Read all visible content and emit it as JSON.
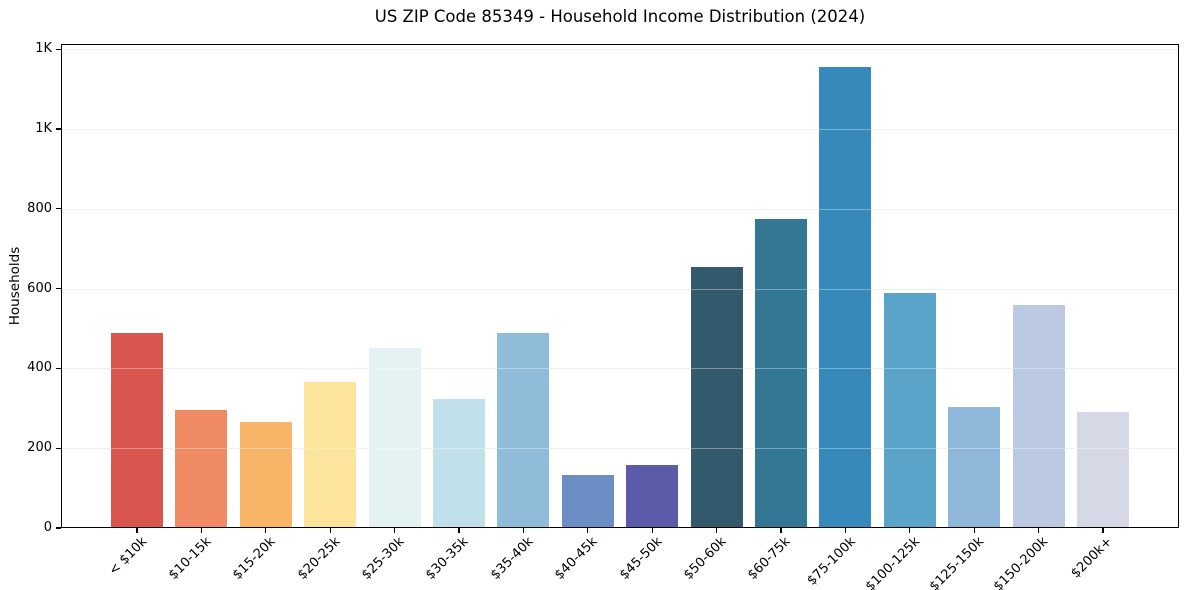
{
  "figure": {
    "title": "US ZIP Code 85349 - Household Income Distribution (2024)",
    "background_color": "#ffffff",
    "spine_color": "#000000",
    "grid_color": "#e7e7e7",
    "text_color": "#000000"
  },
  "chart_data": {
    "type": "bar",
    "title": "US ZIP Code 85349 - Household Income Distribution (2024)",
    "xlabel": "",
    "ylabel": "Households",
    "categories": [
      "< $10k",
      "$10-15k",
      "$15-20k",
      "$20-25k",
      "$25-30k",
      "$30-35k",
      "$35-40k",
      "$40-45k",
      "$45-50k",
      "$50-60k",
      "$60-75k",
      "$75-100k",
      "$100-125k",
      "$125-150k",
      "$150-200k",
      "$200k+"
    ],
    "values": [
      490,
      296,
      265,
      366,
      450,
      323,
      488,
      134,
      157,
      653,
      775,
      1155,
      589,
      303,
      559,
      290
    ],
    "bar_colors": [
      "#d8564d",
      "#f08a64",
      "#f8b567",
      "#fce49c",
      "#e4f2f4",
      "#c2dfec",
      "#8fbcd9",
      "#6b8fc5",
      "#5c5baa",
      "#33596c",
      "#347795",
      "#3789bc",
      "#5ba4c9",
      "#8fb7d9",
      "#bcc9e2",
      "#d6d8e5"
    ],
    "ylim": [
      0,
      1213
    ],
    "yticks": [
      0,
      200,
      400,
      600,
      800,
      1000,
      1200
    ],
    "ytick_labels": [
      "0",
      "200",
      "400",
      "600",
      "800",
      "1K",
      "1K"
    ],
    "grid": "horizontal",
    "legend_position": "none",
    "x_tick_rotation_deg": 45
  }
}
